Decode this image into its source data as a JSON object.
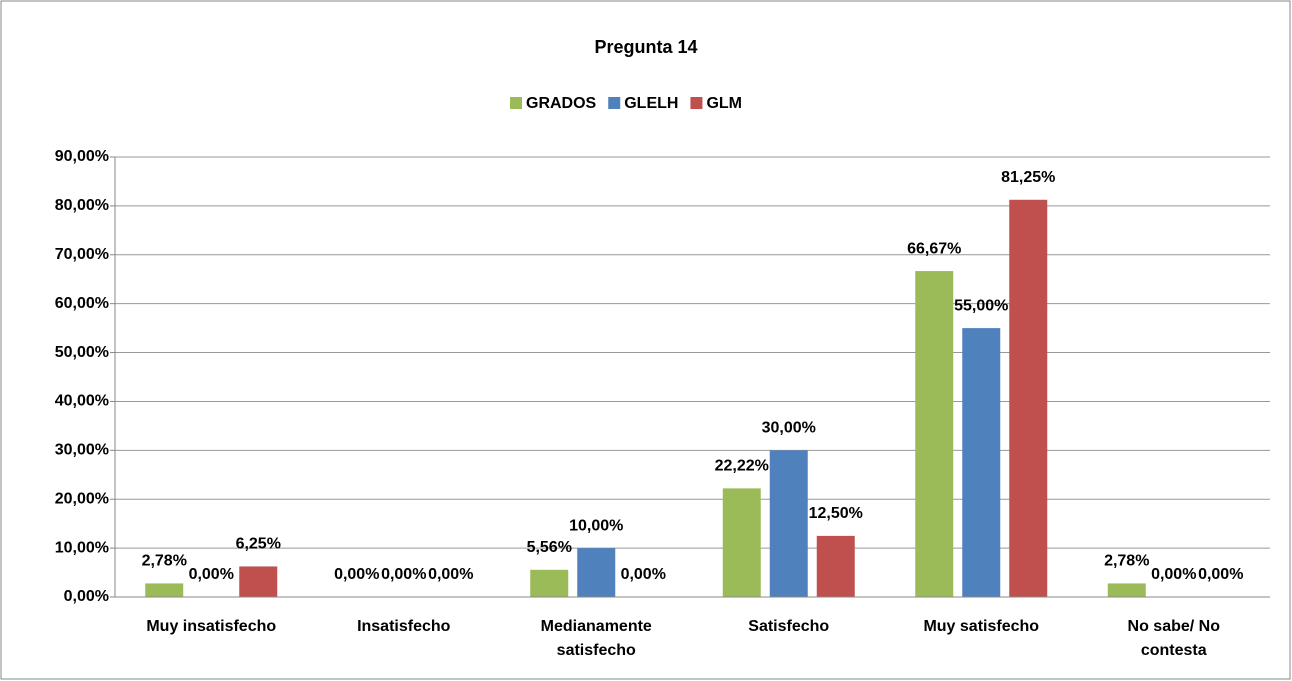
{
  "chart_data": {
    "type": "bar",
    "title": "Pregunta 14",
    "categories": [
      "Muy insatisfecho",
      "Insatisfecho",
      "Medianamente satisfecho",
      "Satisfecho",
      "Muy satisfecho",
      "No sabe/ No contesta"
    ],
    "series": [
      {
        "name": "GRADOS",
        "color": "#9bbb59",
        "values": [
          2.78,
          0,
          5.56,
          22.22,
          66.67,
          2.78
        ],
        "value_labels": [
          "2,78%",
          "0,00%",
          "5,56%",
          "22,22%",
          "66,67%",
          "2,78%"
        ]
      },
      {
        "name": "GLELH",
        "color": "#4f81bd",
        "values": [
          0,
          0,
          10,
          30,
          55,
          0
        ],
        "value_labels": [
          "0,00%",
          "0,00%",
          "10,00%",
          "30,00%",
          "55,00%",
          "0,00%"
        ]
      },
      {
        "name": "GLM",
        "color": "#c0504d",
        "values": [
          6.25,
          0,
          0,
          12.5,
          81.25,
          0
        ],
        "value_labels": [
          "6,25%",
          "0,00%",
          "0,00%",
          "12,50%",
          "81,25%",
          "0,00%"
        ]
      }
    ],
    "ylim": [
      0,
      90
    ],
    "yticks": [
      {
        "value": 0,
        "label": "0,00%"
      },
      {
        "value": 10,
        "label": "10,00%"
      },
      {
        "value": 20,
        "label": "20,00%"
      },
      {
        "value": 30,
        "label": "30,00%"
      },
      {
        "value": 40,
        "label": "40,00%"
      },
      {
        "value": 50,
        "label": "50,00%"
      },
      {
        "value": 60,
        "label": "60,00%"
      },
      {
        "value": 70,
        "label": "70,00%"
      },
      {
        "value": 80,
        "label": "80,00%"
      },
      {
        "value": 90,
        "label": "90,00%"
      }
    ],
    "grid": true,
    "legend": "top"
  }
}
